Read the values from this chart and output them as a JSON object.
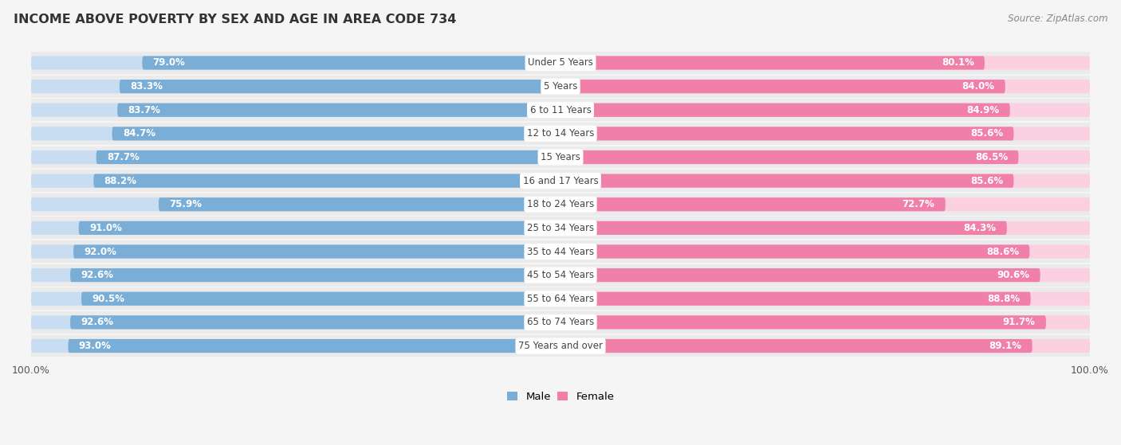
{
  "title": "INCOME ABOVE POVERTY BY SEX AND AGE IN AREA CODE 734",
  "source": "Source: ZipAtlas.com",
  "categories": [
    "Under 5 Years",
    "5 Years",
    "6 to 11 Years",
    "12 to 14 Years",
    "15 Years",
    "16 and 17 Years",
    "18 to 24 Years",
    "25 to 34 Years",
    "35 to 44 Years",
    "45 to 54 Years",
    "55 to 64 Years",
    "65 to 74 Years",
    "75 Years and over"
  ],
  "male_values": [
    79.0,
    83.3,
    83.7,
    84.7,
    87.7,
    88.2,
    75.9,
    91.0,
    92.0,
    92.6,
    90.5,
    92.6,
    93.0
  ],
  "female_values": [
    80.1,
    84.0,
    84.9,
    85.6,
    86.5,
    85.6,
    72.7,
    84.3,
    88.6,
    90.6,
    88.8,
    91.7,
    89.1
  ],
  "male_color": "#7aaed6",
  "female_color": "#f07faa",
  "male_light_color": "#c8ddf2",
  "female_light_color": "#fbd0e0",
  "row_bg_color": "#ebebeb",
  "background_color": "#f5f5f5",
  "title_fontsize": 11.5,
  "label_fontsize": 9,
  "axis_max": 100.0,
  "legend_male_label": "Male",
  "legend_female_label": "Female",
  "center_label_color": "#444444"
}
